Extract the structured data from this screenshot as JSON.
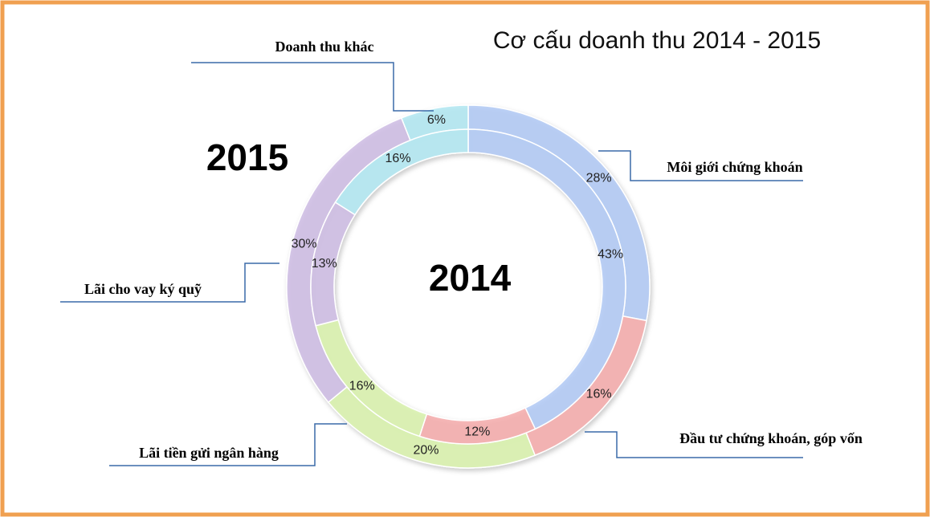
{
  "chart_data": {
    "type": "doughnut",
    "title": "Cơ cấu doanh thu 2014 - 2015",
    "categories": [
      "Môi giới chứng khoán",
      "Đầu tư chứng khoán, góp vốn",
      "Lãi tiền gửi ngân hàng",
      "Lãi cho vay ký quỹ",
      "Doanh thu khác"
    ],
    "colors": [
      "#a9c4f5",
      "#f5a3a3",
      "#d6f2a4",
      "#c9b6e2",
      "#a9e6f2"
    ],
    "series": [
      {
        "name": "2015",
        "values": [
          28,
          16,
          20,
          30,
          6
        ],
        "value_labels": [
          "28%",
          "16%",
          "20%",
          "30%",
          "6%"
        ]
      },
      {
        "name": "2014",
        "values": [
          43,
          12,
          16,
          13,
          16
        ],
        "value_labels": [
          "43%",
          "12%",
          "16%",
          "13%",
          "16%"
        ]
      }
    ]
  }
}
